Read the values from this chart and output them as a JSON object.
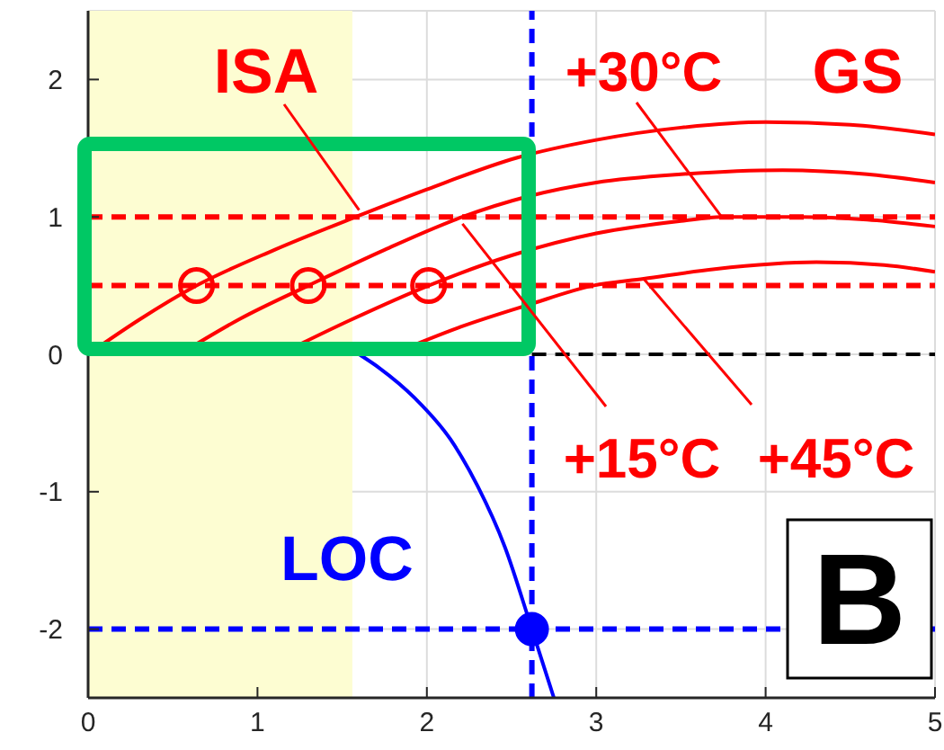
{
  "chart_data": {
    "type": "line",
    "xlim": [
      0,
      5
    ],
    "ylim": [
      -2.5,
      2.5
    ],
    "xticks": [
      0,
      1,
      2,
      3,
      4,
      5
    ],
    "yticks": [
      -2,
      -1,
      0,
      1,
      2
    ],
    "grid": true,
    "legend": false,
    "line_style": "solid",
    "series": [
      {
        "color": "#ff0000",
        "x": [
          0,
          0.3,
          0.64,
          1.1,
          1.58,
          2.0,
          2.53,
          3.0,
          3.5,
          4.0,
          4.5,
          5.0
        ],
        "values": [
          0,
          0.25,
          0.5,
          0.76,
          1.0,
          1.2,
          1.43,
          1.56,
          1.65,
          1.69,
          1.67,
          1.6
        ]
      },
      {
        "color": "#ff0000",
        "x": [
          0.54,
          0.9,
          1.3,
          1.75,
          2.21,
          2.6,
          3.0,
          3.5,
          4.1,
          4.6,
          5.0
        ],
        "values": [
          0,
          0.26,
          0.5,
          0.76,
          1.0,
          1.15,
          1.25,
          1.31,
          1.34,
          1.31,
          1.25
        ]
      },
      {
        "color": "#ff0000",
        "x": [
          1.13,
          1.55,
          2.01,
          2.5,
          3.0,
          3.5,
          3.74,
          4.2,
          4.6,
          5.0
        ],
        "values": [
          0,
          0.25,
          0.5,
          0.72,
          0.88,
          0.97,
          1.0,
          1.0,
          0.98,
          0.93
        ]
      },
      {
        "color": "#ff0000",
        "x": [
          1.79,
          2.2,
          2.6,
          2.98,
          3.28,
          3.7,
          4.3,
          4.7,
          5.0
        ],
        "values": [
          0,
          0.2,
          0.36,
          0.5,
          0.55,
          0.62,
          0.67,
          0.65,
          0.6
        ]
      },
      {
        "color": "#0000ff",
        "x": [
          1.6,
          1.72,
          1.93,
          2.14,
          2.3,
          2.46,
          2.62,
          2.75
        ],
        "values": [
          0,
          -0.1,
          -0.32,
          -0.62,
          -0.96,
          -1.4,
          -2,
          -2.5
        ]
      },
      {
        "color": "#000000",
        "line_style": "dashed",
        "x": [
          2.62,
          5
        ],
        "values": [
          0,
          0
        ]
      },
      {
        "type": "scatter",
        "marker": "circle",
        "color": "#ff0000",
        "x": [
          0.64,
          1.3,
          2.01
        ],
        "values": [
          0.5,
          0.5,
          0.5
        ]
      },
      {
        "type": "scatter",
        "marker": "circle",
        "color": "#0000ff",
        "x": [
          2.62
        ],
        "values": [
          -2
        ]
      }
    ],
    "ref_lines": [
      {
        "axis": "y",
        "value": 1,
        "color": "#ff0000",
        "line_style": "dashed"
      },
      {
        "axis": "y",
        "value": 0.5,
        "color": "#ff0000",
        "line_style": "dashed"
      },
      {
        "axis": "y",
        "value": -2,
        "color": "#0000ff",
        "line_style": "dashed"
      },
      {
        "axis": "x",
        "value": 2.62,
        "color": "#0000ff",
        "line_style": "dashed"
      }
    ],
    "bands": [
      {
        "axis": "x",
        "from": 0,
        "to": 1.56,
        "color": "#fdfdd2"
      }
    ],
    "annotations": [
      {
        "text": "ISA",
        "x": 1.6,
        "y": 1.05
      },
      {
        "text": "+30°C",
        "x": 3.74,
        "y": 1.0
      },
      "GS",
      {
        "text": "+15°C",
        "x": 2.21,
        "y": 0.95
      },
      {
        "text": "+45°C",
        "x": 3.28,
        "y": 0.55
      },
      "LOC",
      "B"
    ]
  }
}
